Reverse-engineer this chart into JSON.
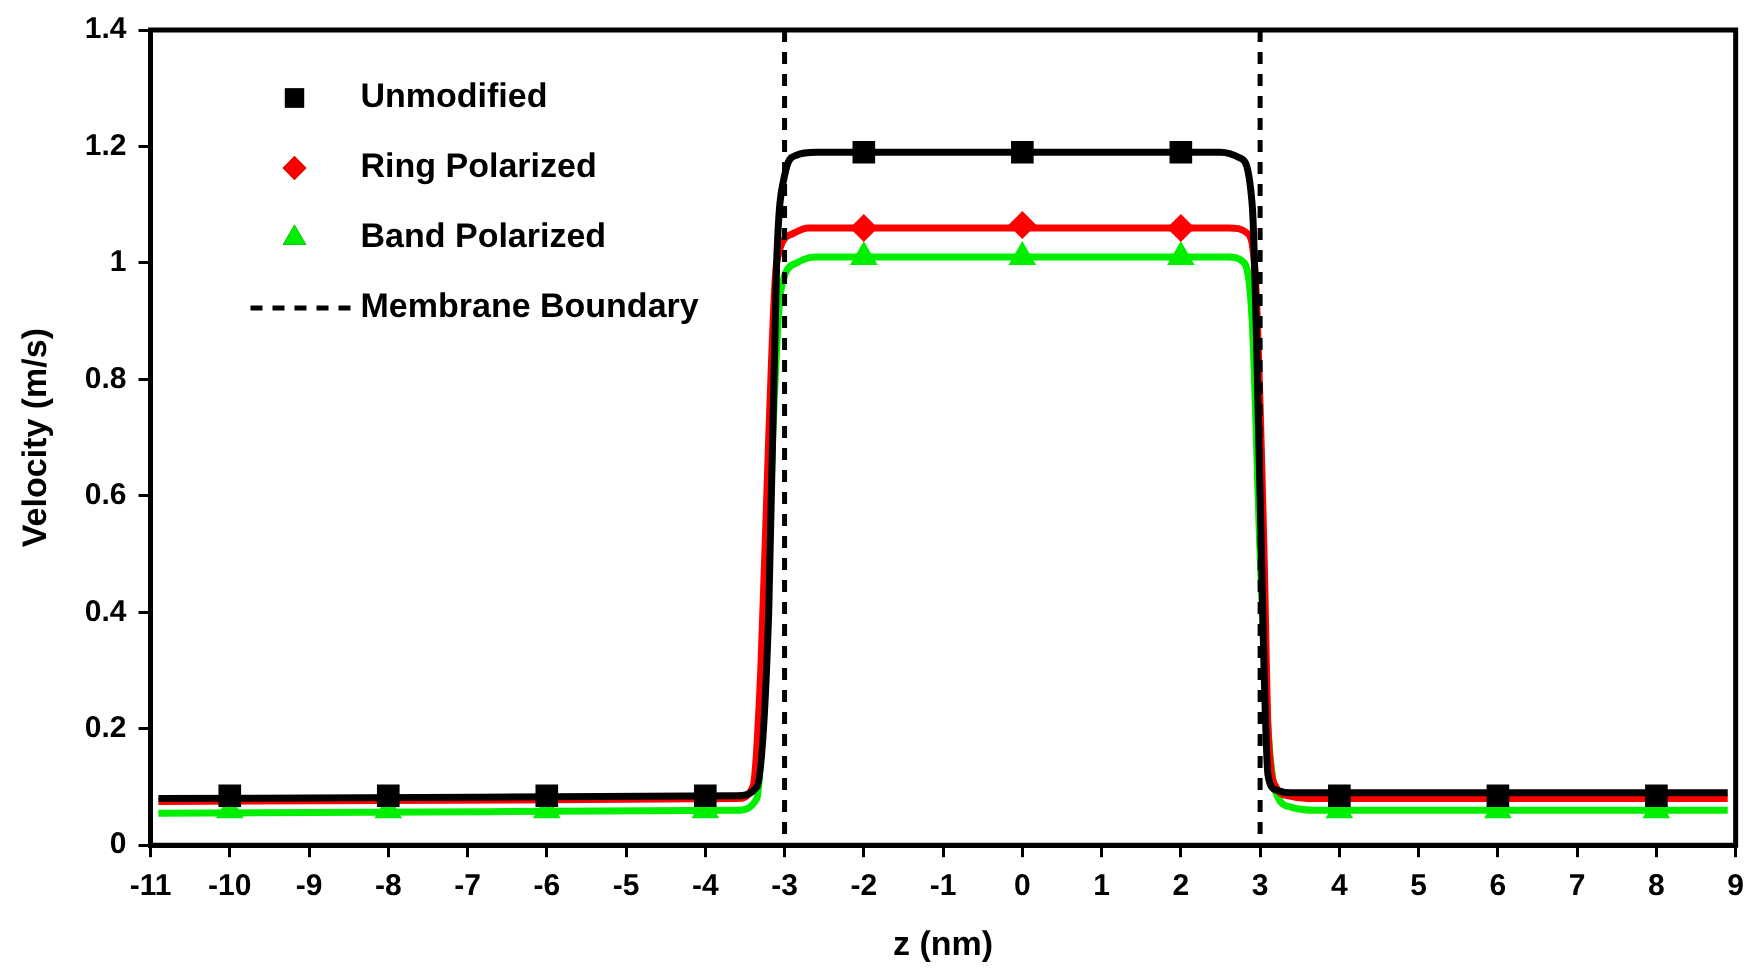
{
  "chart_data": {
    "type": "scatter",
    "xlabel": "z (nm)",
    "ylabel": "Velocity (m/s)",
    "xlim": [
      -11,
      9
    ],
    "xticks": [
      -11,
      -10,
      -9,
      -8,
      -7,
      -6,
      -5,
      -4,
      -3,
      -2,
      -1,
      0,
      1,
      2,
      3,
      4,
      5,
      6,
      7,
      8,
      9
    ],
    "ylim": [
      0,
      1.4
    ],
    "yticks": [
      0,
      0.2,
      0.4,
      0.6,
      0.8,
      1,
      1.2,
      1.4
    ],
    "grid": false,
    "legend": "top left",
    "series": [
      {
        "name": "Unmodified",
        "type": "scatter",
        "marker": "square",
        "color": "#000000",
        "x": [
          -10,
          -8,
          -6,
          -4,
          -2,
          0,
          2,
          4,
          6,
          8
        ],
        "values": [
          0.085,
          0.085,
          0.085,
          0.085,
          1.19,
          1.19,
          1.19,
          0.085,
          0.085,
          0.085
        ]
      },
      {
        "name": "Ring Polarized",
        "type": "scatter",
        "marker": "diamond",
        "color": "#ff0000",
        "x": [
          -2,
          0,
          2
        ],
        "values": [
          1.06,
          1.065,
          1.06
        ]
      },
      {
        "name": "Band Polarized",
        "type": "scatter",
        "marker": "triangle",
        "color": "#00ee00",
        "x": [
          -10,
          -8,
          -6,
          -4,
          -2,
          0,
          2,
          4,
          6,
          8
        ],
        "values": [
          0.06,
          0.06,
          0.06,
          0.06,
          1.01,
          1.01,
          1.01,
          0.06,
          0.06,
          0.06
        ]
      },
      {
        "type": "line",
        "marker": "none",
        "color": "#000000",
        "x": [
          -10.9,
          -3.6,
          -3.35,
          -3.2,
          -3.1,
          -3.0,
          -2.85,
          -2.6,
          2.5,
          2.75,
          2.9,
          3.0,
          3.05,
          3.1,
          3.2,
          3.4,
          8.9
        ],
        "values": [
          0.08,
          0.085,
          0.1,
          0.4,
          1.0,
          1.15,
          1.185,
          1.19,
          1.19,
          1.18,
          1.1,
          0.6,
          0.3,
          0.12,
          0.095,
          0.09,
          0.09
        ]
      },
      {
        "type": "line",
        "marker": "none",
        "color": "#ff0000",
        "x": [
          -10.9,
          -3.6,
          -3.4,
          -3.3,
          -3.2,
          -3.1,
          -2.9,
          -2.7,
          2.6,
          2.85,
          2.95,
          3.05,
          3.1,
          3.2,
          3.35,
          3.6,
          8.9
        ],
        "values": [
          0.075,
          0.08,
          0.1,
          0.3,
          0.7,
          1.0,
          1.05,
          1.06,
          1.06,
          1.05,
          0.95,
          0.5,
          0.2,
          0.1,
          0.085,
          0.08,
          0.08
        ]
      },
      {
        "type": "line",
        "marker": "none",
        "color": "#00ee00",
        "x": [
          -10.9,
          -3.6,
          -3.35,
          -3.25,
          -3.15,
          -3.05,
          -2.85,
          -2.6,
          2.6,
          2.8,
          2.9,
          3.0,
          3.1,
          3.2,
          3.4,
          3.7,
          8.9
        ],
        "values": [
          0.055,
          0.06,
          0.08,
          0.3,
          0.7,
          0.95,
          1.0,
          1.01,
          1.01,
          1.0,
          0.9,
          0.5,
          0.2,
          0.09,
          0.065,
          0.06,
          0.06
        ]
      }
    ],
    "ref_lines": [
      {
        "axis": "x",
        "value": -3,
        "label": "Membrane Boundary",
        "color": "#000000",
        "line_style": "dashed"
      },
      {
        "axis": "x",
        "value": 3,
        "color": "#000000",
        "line_style": "dashed"
      }
    ]
  }
}
